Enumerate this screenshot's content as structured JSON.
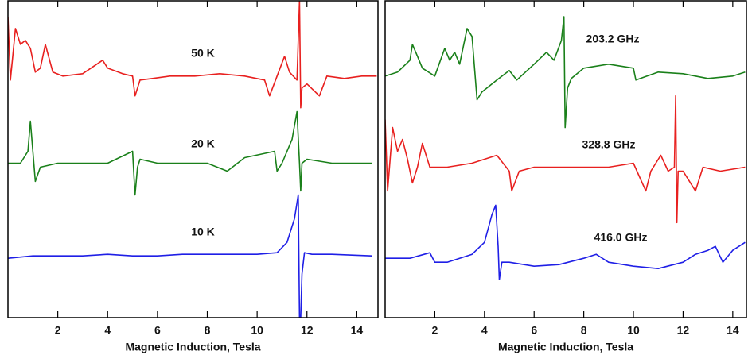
{
  "chart_data": [
    {
      "type": "line",
      "xlabel": "Magnetic Induction, Tesla",
      "xlim": [
        0,
        14.85
      ],
      "xticks": [
        2,
        4,
        6,
        8,
        10,
        12,
        14
      ],
      "ylim": [
        0,
        400
      ],
      "series": [
        {
          "name": "50 K",
          "color": "#e8201f",
          "x": [
            0,
            0.1,
            0.3,
            0.5,
            0.7,
            0.9,
            1.1,
            1.3,
            1.5,
            1.8,
            2.2,
            3,
            3.8,
            4,
            4.6,
            5,
            5.1,
            5.3,
            5.8,
            6.5,
            7.5,
            8.5,
            9.5,
            10.3,
            10.5,
            10.8,
            11.1,
            11.3,
            11.6,
            11.7,
            11.75,
            11.8,
            12,
            12.5,
            12.8,
            13.5,
            14.2,
            14.8
          ],
          "values": [
            380,
            300,
            365,
            345,
            350,
            340,
            310,
            315,
            345,
            310,
            305,
            308,
            325,
            315,
            308,
            305,
            280,
            300,
            302,
            305,
            305,
            308,
            305,
            300,
            280,
            305,
            330,
            310,
            300,
            400,
            265,
            290,
            295,
            280,
            305,
            302,
            305,
            305
          ]
        },
        {
          "name": "20 K",
          "color": "#1a801a",
          "x": [
            0,
            0.5,
            0.8,
            0.9,
            1,
            1.1,
            1.3,
            2,
            3,
            4,
            5,
            5.1,
            5.2,
            5.3,
            6,
            7,
            8,
            8.8,
            9.5,
            10.7,
            10.8,
            11,
            11.4,
            11.6,
            11.7,
            11.75,
            11.8,
            12,
            13,
            14.6
          ],
          "values": [
            195,
            195,
            210,
            248,
            210,
            172,
            190,
            195,
            195,
            195,
            210,
            155,
            190,
            200,
            195,
            195,
            195,
            185,
            202,
            210,
            185,
            195,
            225,
            260,
            195,
            160,
            195,
            200,
            195,
            195
          ]
        },
        {
          "name": "10 K",
          "color": "#1f1fe6",
          "x": [
            0,
            1,
            2,
            3,
            4,
            5,
            6,
            7,
            8,
            9,
            10,
            10.8,
            11.2,
            11.5,
            11.65,
            11.7,
            11.75,
            11.8,
            11.9,
            12.2,
            13,
            14.6
          ],
          "values": [
            75,
            78,
            78,
            78,
            80,
            78,
            78,
            80,
            80,
            80,
            80,
            82,
            95,
            125,
            155,
            0,
            0,
            55,
            82,
            80,
            80,
            78
          ]
        }
      ]
    },
    {
      "type": "line",
      "xlabel": "Magnetic Induction, Tesla",
      "xlim": [
        0,
        14.55
      ],
      "xticks": [
        2,
        4,
        6,
        8,
        10,
        12,
        14
      ],
      "ylim": [
        0,
        400
      ],
      "series": [
        {
          "name": "203.2 GHz",
          "color": "#1a801a",
          "x": [
            0,
            0.5,
            1,
            1.1,
            1.3,
            1.5,
            2,
            2.4,
            2.6,
            2.8,
            3,
            3.3,
            3.5,
            3.7,
            3.9,
            4.5,
            5,
            5.3,
            6,
            6.5,
            6.8,
            7.1,
            7.2,
            7.25,
            7.35,
            7.5,
            8,
            9,
            10,
            10.1,
            11,
            12,
            13,
            14,
            14.5
          ],
          "values": [
            305,
            310,
            325,
            345,
            330,
            315,
            305,
            340,
            325,
            335,
            320,
            365,
            355,
            275,
            285,
            300,
            312,
            300,
            320,
            335,
            325,
            350,
            380,
            240,
            290,
            302,
            315,
            320,
            315,
            300,
            310,
            308,
            302,
            305,
            310
          ]
        },
        {
          "name": "328.8 GHz",
          "color": "#e8201f",
          "x": [
            0,
            0.1,
            0.3,
            0.5,
            0.7,
            0.9,
            1.1,
            1.3,
            1.5,
            1.8,
            2.5,
            3.5,
            4.5,
            5,
            5.1,
            5.4,
            6,
            7,
            8,
            9,
            10,
            10.5,
            10.7,
            11.1,
            11.4,
            11.65,
            11.7,
            11.75,
            11.8,
            12,
            12.5,
            12.8,
            13.5,
            14.5
          ],
          "values": [
            250,
            160,
            240,
            210,
            225,
            200,
            170,
            190,
            220,
            190,
            190,
            195,
            205,
            185,
            160,
            185,
            190,
            190,
            190,
            190,
            195,
            160,
            185,
            205,
            185,
            190,
            280,
            120,
            185,
            185,
            160,
            190,
            185,
            190
          ]
        },
        {
          "name": "416.0 GHz",
          "color": "#1f1fe6",
          "x": [
            0,
            1,
            1.8,
            2,
            2.5,
            3,
            3.5,
            4,
            4.3,
            4.45,
            4.55,
            4.6,
            4.7,
            5,
            6,
            7,
            8,
            8.5,
            9,
            10,
            11,
            12,
            12.5,
            13,
            13.3,
            13.6,
            14,
            14.5
          ],
          "values": [
            75,
            75,
            82,
            70,
            70,
            75,
            80,
            95,
            130,
            142,
            90,
            48,
            70,
            70,
            65,
            67,
            75,
            80,
            70,
            65,
            62,
            70,
            80,
            85,
            90,
            70,
            85,
            95
          ]
        }
      ]
    }
  ]
}
